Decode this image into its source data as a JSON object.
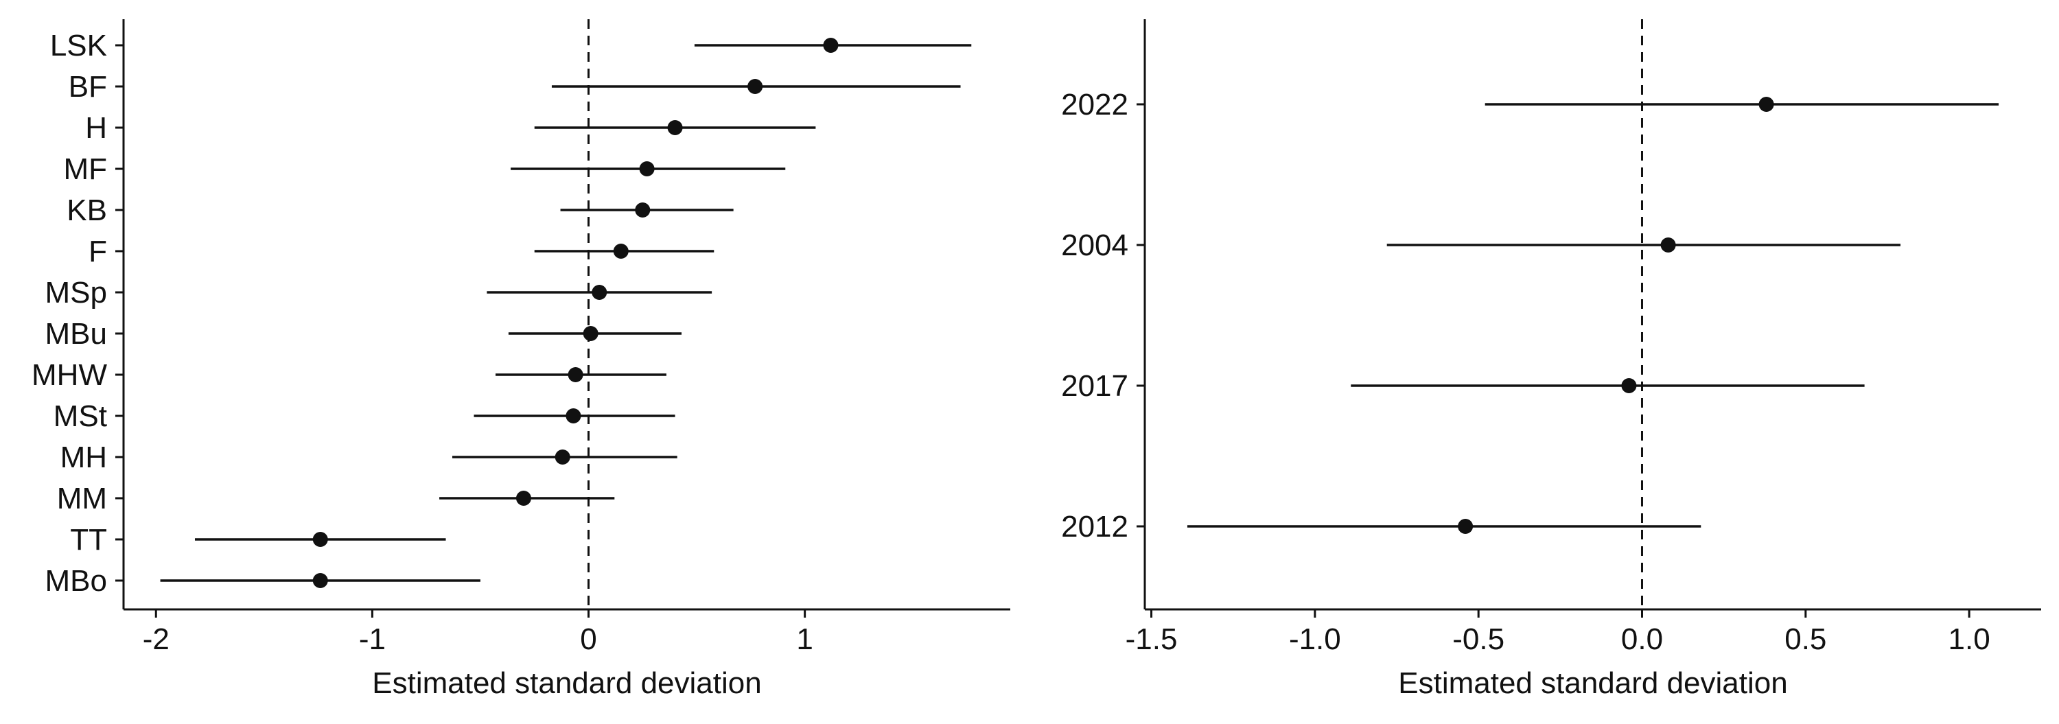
{
  "chart_data": [
    {
      "type": "forest",
      "xlabel": "Estimated standard deviation",
      "ylabel": "",
      "xlim": [
        -2.15,
        1.95
      ],
      "xticks": [
        -2,
        -1,
        0,
        1
      ],
      "xtick_labels": [
        "-2",
        "-1",
        "0",
        "1"
      ],
      "reference_line": 0,
      "categories": [
        "LSK",
        "BF",
        "H",
        "MF",
        "KB",
        "F",
        "MSp",
        "MBu",
        "MHW",
        "MSt",
        "MH",
        "MM",
        "TT",
        "MBo"
      ],
      "estimates": [
        1.12,
        0.77,
        0.4,
        0.27,
        0.25,
        0.15,
        0.05,
        0.01,
        -0.06,
        -0.07,
        -0.12,
        -0.3,
        -1.24,
        -1.24
      ],
      "lower": [
        0.49,
        -0.17,
        -0.25,
        -0.36,
        -0.13,
        -0.25,
        -0.47,
        -0.37,
        -0.43,
        -0.53,
        -0.63,
        -0.69,
        -1.82,
        -1.98
      ],
      "upper": [
        1.77,
        1.72,
        1.05,
        0.91,
        0.67,
        0.58,
        0.57,
        0.43,
        0.36,
        0.4,
        0.41,
        0.12,
        -0.66,
        -0.5
      ]
    },
    {
      "type": "forest",
      "xlabel": "Estimated standard deviation",
      "ylabel": "",
      "xlim": [
        -1.52,
        1.22
      ],
      "xticks": [
        -1.5,
        -1.0,
        -0.5,
        0.0,
        0.5,
        1.0
      ],
      "xtick_labels": [
        "-1.5",
        "-1.0",
        "-0.5",
        "0.0",
        "0.5",
        "1.0"
      ],
      "reference_line": 0,
      "categories": [
        "2022",
        "2004",
        "2017",
        "2012"
      ],
      "estimates": [
        0.38,
        0.08,
        -0.04,
        -0.54
      ],
      "lower": [
        -0.48,
        -0.78,
        -0.89,
        -1.39
      ],
      "upper": [
        1.09,
        0.79,
        0.68,
        0.18
      ]
    }
  ]
}
